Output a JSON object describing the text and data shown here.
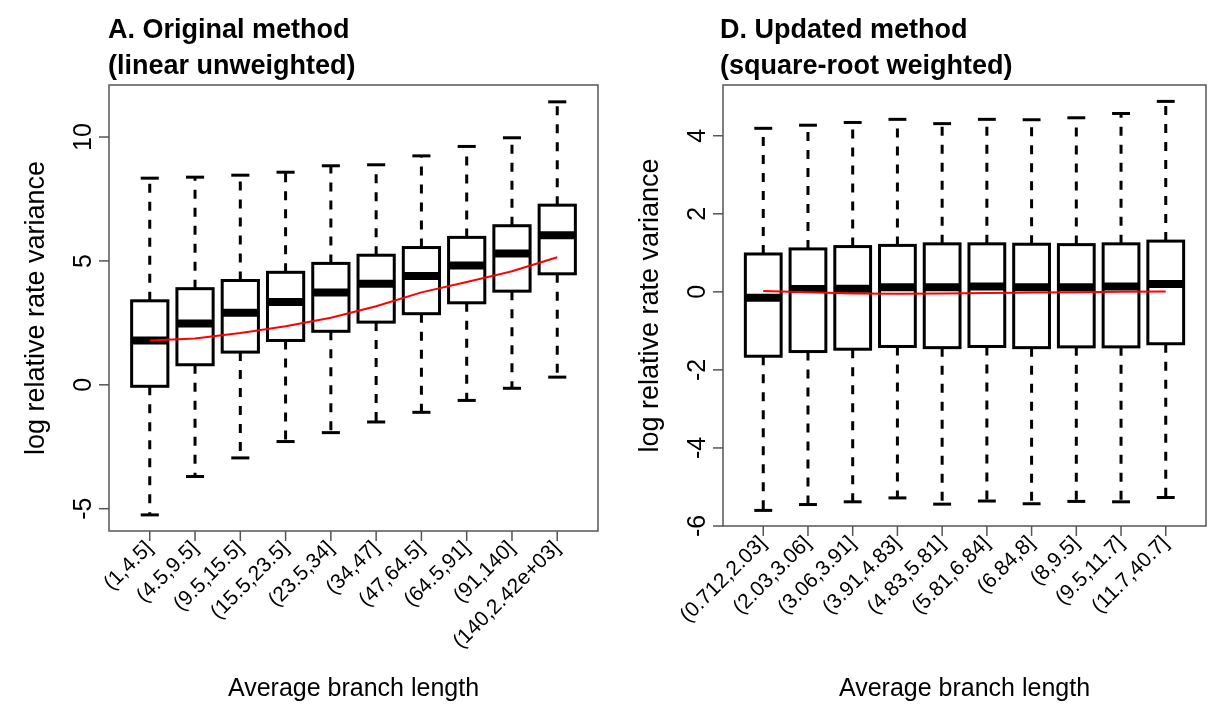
{
  "chart_data": [
    {
      "type": "box",
      "title": "A. Original method\n(linear unweighted)",
      "xlabel": "Average branch length",
      "ylabel": "log relative rate variance",
      "categories": [
        "(1,4.5]",
        "(4.5,9.5]",
        "(9.5,15.5]",
        "(15.5,23.5]",
        "(23.5,34]",
        "(34,47]",
        "(47,64.5]",
        "(64.5,91]",
        "(91,140]",
        "(140,2.42e+03]"
      ],
      "ylim": [
        -5.9,
        12.1
      ],
      "yticks": [
        -5,
        0,
        5,
        10
      ],
      "grid": false,
      "series": [
        {
          "type": "box",
          "color": "#000000",
          "boxes": [
            {
              "low": -5.25,
              "q1": -0.06,
              "median": 1.79,
              "q3": 3.39,
              "high": 8.34
            },
            {
              "low": -3.7,
              "q1": 0.81,
              "median": 2.47,
              "q3": 3.88,
              "high": 8.38
            },
            {
              "low": -2.95,
              "q1": 1.32,
              "median": 2.91,
              "q3": 4.21,
              "high": 8.46
            },
            {
              "low": -2.29,
              "q1": 1.79,
              "median": 3.34,
              "q3": 4.54,
              "high": 8.58
            },
            {
              "low": -1.93,
              "q1": 2.16,
              "median": 3.73,
              "q3": 4.9,
              "high": 8.84
            },
            {
              "low": -1.5,
              "q1": 2.53,
              "median": 4.08,
              "q3": 5.23,
              "high": 8.88
            },
            {
              "low": -1.11,
              "q1": 2.87,
              "median": 4.39,
              "q3": 5.54,
              "high": 9.24
            },
            {
              "low": -0.63,
              "q1": 3.31,
              "median": 4.82,
              "q3": 5.95,
              "high": 9.62
            },
            {
              "low": -0.14,
              "q1": 3.78,
              "median": 5.3,
              "q3": 6.42,
              "high": 9.97
            },
            {
              "low": 0.31,
              "q1": 4.48,
              "median": 6.04,
              "q3": 7.25,
              "high": 11.42
            }
          ]
        },
        {
          "type": "line",
          "color": "#ff0000",
          "values": [
            1.79,
            1.87,
            2.09,
            2.36,
            2.71,
            3.17,
            3.73,
            4.15,
            4.58,
            5.15
          ]
        }
      ]
    },
    {
      "type": "box",
      "title": "D. Updated method\n(square-root weighted)",
      "xlabel": "Average branch length",
      "ylabel": "log relative rate variance",
      "categories": [
        "(0.712,2.03]",
        "(2.03,3.06]",
        "(3.06,3.91]",
        "(3.91,4.83]",
        "(4.83,5.81]",
        "(5.81,6.84]",
        "(6.84,8]",
        "(8,9.5]",
        "(9.5,11.7]",
        "(11.7,40.7]"
      ],
      "ylim": [
        -6,
        5.3
      ],
      "yticks": [
        -6,
        -4,
        -2,
        0,
        2,
        4
      ],
      "grid": false,
      "series": [
        {
          "type": "box",
          "color": "#000000",
          "boxes": [
            {
              "low": -5.6,
              "q1": -1.65,
              "median": -0.15,
              "q3": 0.97,
              "high": 4.19
            },
            {
              "low": -5.45,
              "q1": -1.53,
              "median": 0.07,
              "q3": 1.1,
              "high": 4.27
            },
            {
              "low": -5.38,
              "q1": -1.47,
              "median": 0.08,
              "q3": 1.16,
              "high": 4.34
            },
            {
              "low": -5.28,
              "q1": -1.4,
              "median": 0.12,
              "q3": 1.19,
              "high": 4.42
            },
            {
              "low": -5.44,
              "q1": -1.43,
              "median": 0.12,
              "q3": 1.23,
              "high": 4.31
            },
            {
              "low": -5.36,
              "q1": -1.4,
              "median": 0.14,
              "q3": 1.23,
              "high": 4.42
            },
            {
              "low": -5.43,
              "q1": -1.43,
              "median": 0.12,
              "q3": 1.22,
              "high": 4.41
            },
            {
              "low": -5.37,
              "q1": -1.41,
              "median": 0.12,
              "q3": 1.21,
              "high": 4.46
            },
            {
              "low": -5.38,
              "q1": -1.41,
              "median": 0.14,
              "q3": 1.23,
              "high": 4.57
            },
            {
              "low": -5.27,
              "q1": -1.33,
              "median": 0.2,
              "q3": 1.3,
              "high": 4.88
            }
          ]
        },
        {
          "type": "line",
          "color": "#ff0000",
          "values": [
            0.02,
            -0.01,
            -0.04,
            -0.05,
            -0.04,
            -0.03,
            -0.02,
            -0.01,
            0,
            0.01
          ]
        }
      ]
    }
  ]
}
